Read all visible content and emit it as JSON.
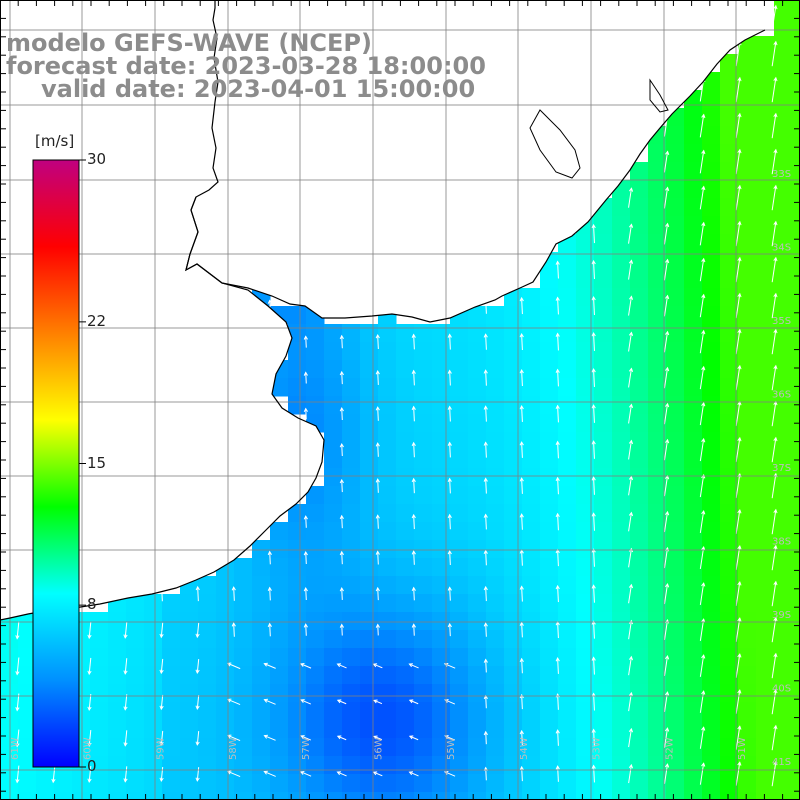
{
  "header": {
    "line1": "modelo GEFS-WAVE (NCEP)",
    "line2": "forecast date: 2023-03-28 18:00:00",
    "line3": "valid date: 2023-04-01 15:00:00"
  },
  "colorbar": {
    "unit": "[m/s]",
    "ticks": [
      {
        "value": 30,
        "label": "30"
      },
      {
        "value": 22,
        "label": "22"
      },
      {
        "value": 15,
        "label": "15"
      },
      {
        "value": 8,
        "label": "8"
      },
      {
        "value": 0,
        "label": "0"
      }
    ],
    "min": 0,
    "max": 30,
    "colors": [
      "#0000ff",
      "#0090ff",
      "#00ffff",
      "#00ff00",
      "#ffff00",
      "#ff8000",
      "#ff0000",
      "#c00080"
    ]
  },
  "grid": {
    "lon_labels": [
      "61W",
      "60W",
      "59W",
      "58W",
      "57W",
      "56W",
      "55W",
      "54W",
      "53W",
      "52W",
      "51W"
    ],
    "lat_labels": [
      "33S",
      "34S",
      "35S",
      "36S",
      "37S",
      "38S",
      "39S",
      "40S",
      "41S"
    ]
  },
  "colors": {
    "land": "#ffffff",
    "coastline": "#000000",
    "gridline": "#808080",
    "arrow": "#ffffff",
    "title_text": "#8c8c8c"
  }
}
